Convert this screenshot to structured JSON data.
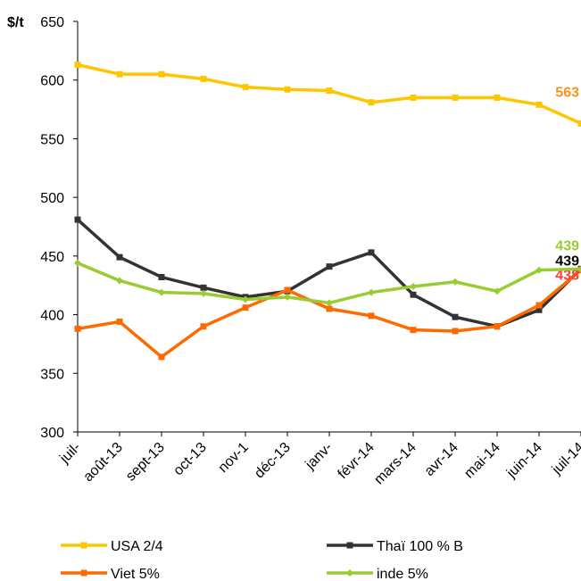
{
  "chart_data": {
    "type": "line",
    "ylabel": "$/t",
    "categories": [
      "juil-",
      "août-13",
      "sept-13",
      "oct-13",
      "nov-1",
      "déc-13",
      "janv-",
      "févr-14",
      "mars-14",
      "avr-14",
      "mai-14",
      "juin-14",
      "juil-14"
    ],
    "ylim": [
      300,
      650
    ],
    "yticks": [
      300,
      350,
      400,
      450,
      500,
      550,
      600,
      650
    ],
    "series": [
      {
        "name": "USA 2/4",
        "color": "#ffc600",
        "marker": "square",
        "label_color": "#f7941d",
        "values": [
          613,
          605,
          605,
          601,
          594,
          592,
          591,
          581,
          585,
          585,
          585,
          579,
          563
        ]
      },
      {
        "name": "Thaï 100 % B",
        "color": "#333333",
        "marker": "square",
        "label_color": "#000000",
        "values": [
          481,
          449,
          432,
          423,
          415,
          420,
          441,
          453,
          417,
          398,
          390,
          404,
          439
        ]
      },
      {
        "name": "Viet 5%",
        "color": "#ff6a00",
        "marker": "square",
        "label_color": "#ff3b3b",
        "values": [
          388,
          394,
          364,
          390,
          406,
          421,
          405,
          399,
          387,
          386,
          390,
          408,
          438
        ]
      },
      {
        "name": "inde 5%",
        "color": "#99cc33",
        "marker": "diamond",
        "label_color": "#99cc33",
        "values": [
          444,
          429,
          419,
          418,
          413,
          415,
          410,
          419,
          424,
          428,
          420,
          438,
          439
        ]
      }
    ]
  }
}
